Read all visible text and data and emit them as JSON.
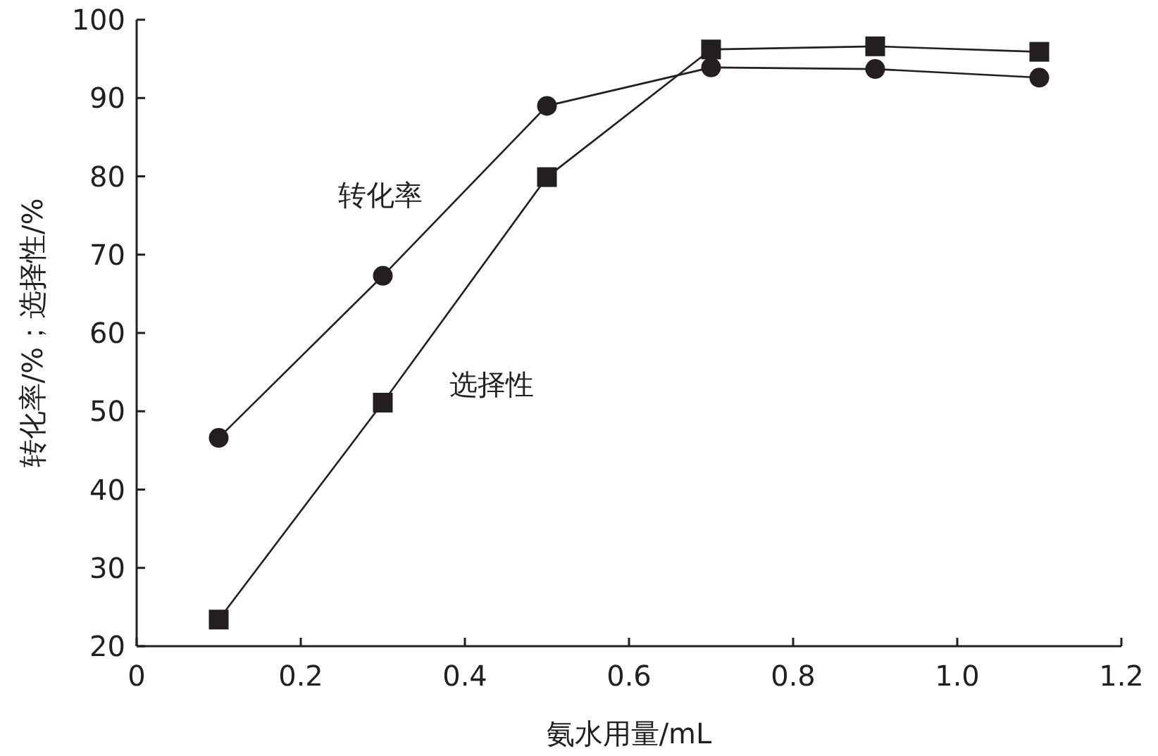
{
  "chart_data": {
    "type": "line",
    "xlabel": "氨水用量/mL",
    "ylabel": "转化率/%；选择性/%",
    "x": [
      0.1,
      0.3,
      0.5,
      0.7,
      0.9,
      1.1
    ],
    "xlim": [
      0,
      1.2
    ],
    "xticks": [
      0,
      {
        "value": 0.2,
        "label": "0.2"
      },
      {
        "value": 0.4,
        "label": "0.4"
      },
      {
        "value": 0.6,
        "label": "0.6"
      },
      {
        "value": 0.8,
        "label": "0.8"
      },
      {
        "value": 1,
        "label": "1.0"
      },
      {
        "value": 1.2,
        "label": "1.2"
      }
    ],
    "ylim": [
      20,
      100
    ],
    "yticks": [
      20,
      30,
      40,
      50,
      60,
      70,
      80,
      90,
      100
    ],
    "grid": false,
    "line_style": "solid",
    "series": [
      {
        "name": "转化率",
        "color": "#231f20",
        "marker": "circle",
        "values": [
          46.6,
          67.3,
          89.0,
          93.9,
          93.7,
          92.6
        ]
      },
      {
        "name": "选择性",
        "color": "#231f20",
        "marker": "square",
        "values": [
          23.4,
          51.1,
          79.9,
          96.2,
          96.6,
          95.9
        ]
      }
    ]
  }
}
